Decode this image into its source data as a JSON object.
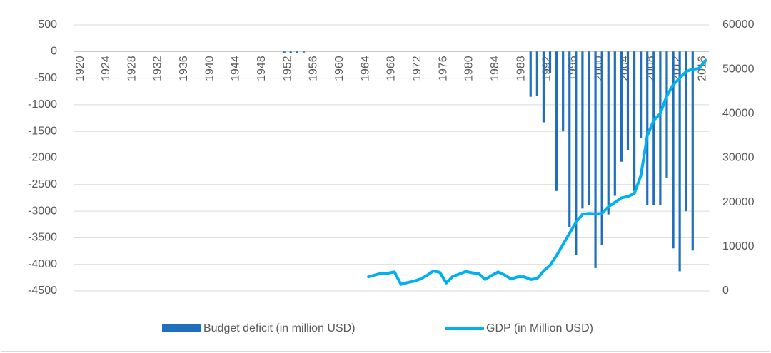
{
  "chart_data": {
    "type": "bar-line",
    "categories": [
      "1920",
      null,
      null,
      null,
      "1924",
      null,
      null,
      null,
      "1928",
      null,
      null,
      null,
      "1932",
      null,
      null,
      null,
      "1936",
      null,
      null,
      null,
      "1940",
      null,
      null,
      null,
      "1944",
      null,
      null,
      null,
      "1948",
      null,
      null,
      null,
      "1952",
      null,
      null,
      null,
      "1956",
      null,
      null,
      null,
      "1960",
      null,
      null,
      null,
      "1964",
      null,
      null,
      null,
      "1968",
      null,
      null,
      null,
      "1972",
      null,
      null,
      null,
      "1976",
      null,
      null,
      null,
      "1980",
      null,
      null,
      null,
      "1984",
      null,
      null,
      null,
      "1988",
      null,
      null,
      null,
      "1992",
      null,
      null,
      null,
      "1996",
      null,
      null,
      null,
      "2000",
      null,
      null,
      null,
      "2004",
      null,
      null,
      null,
      "2008",
      null,
      null,
      null,
      "2012",
      null,
      null,
      null,
      "2016",
      null
    ],
    "series": [
      {
        "name": "Budget deficit (in million USD)",
        "color": "#1f6fbd",
        "kind": "bar",
        "values": [
          null,
          null,
          null,
          null,
          null,
          null,
          null,
          null,
          null,
          null,
          null,
          null,
          null,
          null,
          null,
          null,
          null,
          null,
          null,
          null,
          null,
          null,
          null,
          null,
          null,
          null,
          null,
          null,
          null,
          null,
          null,
          null,
          -30,
          -30,
          -30,
          -20,
          null,
          null,
          null,
          null,
          null,
          null,
          null,
          null,
          null,
          null,
          null,
          null,
          null,
          null,
          null,
          null,
          null,
          null,
          null,
          null,
          null,
          null,
          null,
          null,
          null,
          null,
          null,
          null,
          null,
          null,
          null,
          null,
          null,
          null,
          -850,
          -830,
          -1330,
          -400,
          -2620,
          -1500,
          -3300,
          -3830,
          -2950,
          -2880,
          -4070,
          -3640,
          -3060,
          -2710,
          -2070,
          -1850,
          -2620,
          -1620,
          -2880,
          -2880,
          -2880,
          -2380,
          -3700,
          -4130,
          -3000,
          -3740,
          null,
          null
        ]
      },
      {
        "name": "GDP (in Million USD)",
        "color": "#00b0f0",
        "kind": "line",
        "axis": "y2",
        "values": [
          null,
          null,
          null,
          null,
          null,
          null,
          null,
          null,
          null,
          null,
          null,
          null,
          null,
          null,
          null,
          null,
          null,
          null,
          null,
          null,
          null,
          null,
          null,
          null,
          null,
          null,
          null,
          null,
          null,
          null,
          null,
          null,
          null,
          null,
          null,
          null,
          null,
          null,
          null,
          null,
          null,
          null,
          null,
          null,
          null,
          3200,
          3600,
          4000,
          4000,
          4300,
          1500,
          1900,
          2200,
          2700,
          3500,
          4500,
          4200,
          1800,
          3300,
          3800,
          4400,
          4100,
          3900,
          2600,
          3500,
          4300,
          3600,
          2700,
          3200,
          3200,
          2600,
          2800,
          4500,
          5800,
          8000,
          10500,
          13000,
          15500,
          17300,
          17500,
          17400,
          17500,
          19000,
          20000,
          21000,
          21300,
          22000,
          26000,
          35000,
          38500,
          40000,
          44000,
          46500,
          48000,
          49500,
          50000,
          50200,
          52000
        ]
      }
    ],
    "ylim": [
      -4500,
      500
    ],
    "yticks": [
      500,
      0,
      -500,
      -1000,
      -1500,
      -2000,
      -2500,
      -3000,
      -3500,
      -4000,
      -4500
    ],
    "y2lim": [
      0,
      60000
    ],
    "y2ticks": [
      60000,
      50000,
      40000,
      30000,
      20000,
      10000,
      0
    ],
    "grid": true,
    "legend": "bottom"
  }
}
